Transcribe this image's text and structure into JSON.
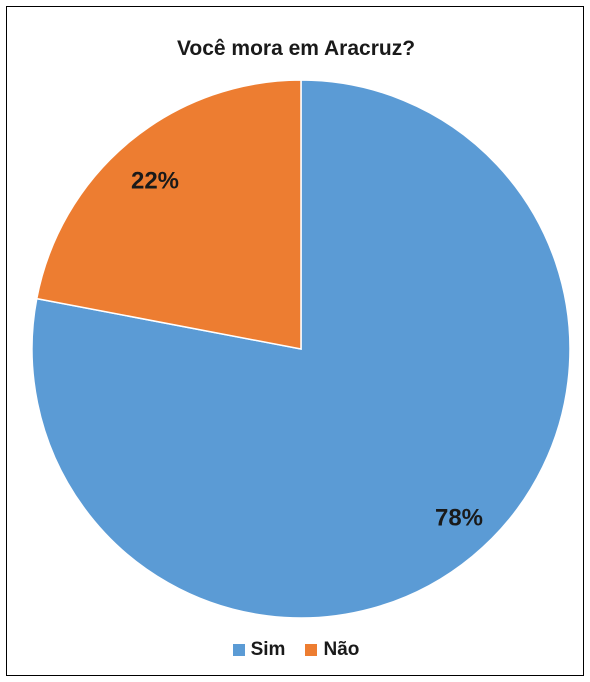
{
  "chart_data": {
    "type": "pie",
    "title": "Você mora em Aracruz?",
    "slices": [
      {
        "label": "Sim",
        "value": 78,
        "display": "78%",
        "color": "#5b9bd5"
      },
      {
        "label": "Não",
        "value": 22,
        "display": "22%",
        "color": "#ed7d31"
      }
    ],
    "legend_position": "bottom",
    "start_angle": "12 o'clock, clockwise"
  }
}
